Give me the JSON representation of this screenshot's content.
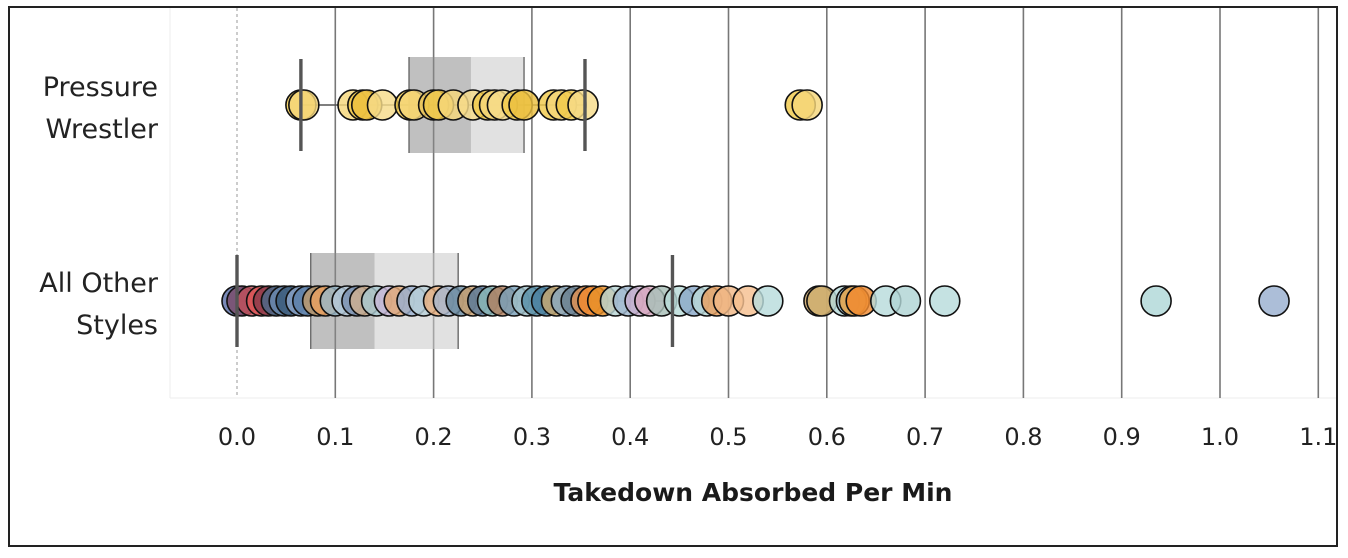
{
  "chart_data": {
    "type": "scatter",
    "subtype": "box-and-whisker strip plot",
    "orientation": "horizontal",
    "xlabel": "Takedown Absorbed Per Min",
    "xlim": [
      -0.07,
      1.12
    ],
    "xticks": [
      0.0,
      0.1,
      0.2,
      0.3,
      0.4,
      0.5,
      0.6,
      0.7,
      0.8,
      0.9,
      1.0,
      1.1
    ],
    "tick_labels": [
      "0.0",
      "0.1",
      "0.2",
      "0.3",
      "0.4",
      "0.5",
      "0.6",
      "0.7",
      "0.8",
      "0.9",
      "1.0",
      "1.1"
    ],
    "grid": "vertical lines at each x tick",
    "zero_line": "dashed",
    "categories": [
      "Pressure Wrestler",
      "All Other Styles"
    ],
    "category_labels": [
      [
        "Pressure",
        "Wrestler"
      ],
      [
        "All Other",
        "Styles"
      ]
    ],
    "boxes": [
      {
        "category": "Pressure Wrestler",
        "whisker_low": 0.065,
        "q1": 0.175,
        "median": 0.238,
        "q3": 0.292,
        "whisker_high": 0.354
      },
      {
        "category": "All Other Styles",
        "whisker_low": 0.0,
        "q1": 0.075,
        "median": 0.14,
        "q3": 0.225,
        "whisker_high": 0.443
      }
    ],
    "series": [
      {
        "category": "Pressure Wrestler",
        "points": [
          {
            "x": 0.065,
            "color": "#f0c94a"
          },
          {
            "x": 0.068,
            "color": "#f5d77a"
          },
          {
            "x": 0.118,
            "color": "#f5d77a"
          },
          {
            "x": 0.128,
            "color": "#f0c94a"
          },
          {
            "x": 0.132,
            "color": "#ecc040"
          },
          {
            "x": 0.148,
            "color": "#f7dc8a"
          },
          {
            "x": 0.176,
            "color": "#f0c94a"
          },
          {
            "x": 0.18,
            "color": "#f5d77a"
          },
          {
            "x": 0.2,
            "color": "#e8c35a"
          },
          {
            "x": 0.205,
            "color": "#f0c94a"
          },
          {
            "x": 0.22,
            "color": "#f5d77a"
          },
          {
            "x": 0.24,
            "color": "#f7dc8a"
          },
          {
            "x": 0.255,
            "color": "#f0c94a"
          },
          {
            "x": 0.262,
            "color": "#f5d77a"
          },
          {
            "x": 0.27,
            "color": "#f7dc8a"
          },
          {
            "x": 0.285,
            "color": "#f0c94a"
          },
          {
            "x": 0.292,
            "color": "#ecc040"
          },
          {
            "x": 0.322,
            "color": "#f0c94a"
          },
          {
            "x": 0.33,
            "color": "#f5d77a"
          },
          {
            "x": 0.34,
            "color": "#f0c94a"
          },
          {
            "x": 0.352,
            "color": "#f7dc8a"
          },
          {
            "x": 0.573,
            "color": "#f0c94a"
          },
          {
            "x": 0.58,
            "color": "#f5d77a"
          }
        ]
      },
      {
        "category": "All Other Styles",
        "points": [
          {
            "x": 0.0,
            "color": "#5b6fa8"
          },
          {
            "x": 0.005,
            "color": "#7a4a6a"
          },
          {
            "x": 0.015,
            "color": "#c0505a"
          },
          {
            "x": 0.025,
            "color": "#e05858"
          },
          {
            "x": 0.032,
            "color": "#8a3a4a"
          },
          {
            "x": 0.04,
            "color": "#4a6a8a"
          },
          {
            "x": 0.048,
            "color": "#6a8ab0"
          },
          {
            "x": 0.055,
            "color": "#3a5a7a"
          },
          {
            "x": 0.065,
            "color": "#8aa4c8"
          },
          {
            "x": 0.072,
            "color": "#5b7fa8"
          },
          {
            "x": 0.082,
            "color": "#c09a6a"
          },
          {
            "x": 0.09,
            "color": "#e8a060"
          },
          {
            "x": 0.1,
            "color": "#9ab8c8"
          },
          {
            "x": 0.112,
            "color": "#b5c8d8"
          },
          {
            "x": 0.122,
            "color": "#7a90b0"
          },
          {
            "x": 0.13,
            "color": "#d0b090"
          },
          {
            "x": 0.142,
            "color": "#a8c8d0"
          },
          {
            "x": 0.155,
            "color": "#c8b8d8"
          },
          {
            "x": 0.165,
            "color": "#e0a878"
          },
          {
            "x": 0.178,
            "color": "#9ab0d0"
          },
          {
            "x": 0.19,
            "color": "#b8d0d8"
          },
          {
            "x": 0.205,
            "color": "#e8b080"
          },
          {
            "x": 0.215,
            "color": "#a8b8d0"
          },
          {
            "x": 0.228,
            "color": "#6a8aa0"
          },
          {
            "x": 0.24,
            "color": "#c8a070"
          },
          {
            "x": 0.25,
            "color": "#5a7a9a"
          },
          {
            "x": 0.26,
            "color": "#8ab8b8"
          },
          {
            "x": 0.27,
            "color": "#b08060"
          },
          {
            "x": 0.282,
            "color": "#7aa0b8"
          },
          {
            "x": 0.295,
            "color": "#a0c0c8"
          },
          {
            "x": 0.305,
            "color": "#5a90a8"
          },
          {
            "x": 0.315,
            "color": "#4a80a0"
          },
          {
            "x": 0.325,
            "color": "#c8a870"
          },
          {
            "x": 0.335,
            "color": "#8aa8c0"
          },
          {
            "x": 0.345,
            "color": "#6a8090"
          },
          {
            "x": 0.355,
            "color": "#e09050"
          },
          {
            "x": 0.362,
            "color": "#f08a30"
          },
          {
            "x": 0.372,
            "color": "#e8902a"
          },
          {
            "x": 0.385,
            "color": "#b8d4d4"
          },
          {
            "x": 0.398,
            "color": "#a0b8d0"
          },
          {
            "x": 0.41,
            "color": "#c8b0d0"
          },
          {
            "x": 0.42,
            "color": "#d8a8c0"
          },
          {
            "x": 0.432,
            "color": "#a8c0b8"
          },
          {
            "x": 0.45,
            "color": "#b8dad8"
          },
          {
            "x": 0.465,
            "color": "#8aa8c8"
          },
          {
            "x": 0.478,
            "color": "#b8d8d8"
          },
          {
            "x": 0.488,
            "color": "#e8a060"
          },
          {
            "x": 0.5,
            "color": "#f0b888"
          },
          {
            "x": 0.52,
            "color": "#f5c090"
          },
          {
            "x": 0.54,
            "color": "#b8dcdc"
          },
          {
            "x": 0.592,
            "color": "#c8a060"
          },
          {
            "x": 0.595,
            "color": "#d0b070"
          },
          {
            "x": 0.618,
            "color": "#b8dcdc"
          },
          {
            "x": 0.625,
            "color": "#a8c8d8"
          },
          {
            "x": 0.628,
            "color": "#e8a040"
          },
          {
            "x": 0.635,
            "color": "#f08a30"
          },
          {
            "x": 0.66,
            "color": "#b8dcdc"
          },
          {
            "x": 0.68,
            "color": "#b0d4d4"
          },
          {
            "x": 0.72,
            "color": "#b8dcdc"
          },
          {
            "x": 0.935,
            "color": "#b0d8d8"
          },
          {
            "x": 1.055,
            "color": "#9ab0d0"
          }
        ]
      }
    ]
  }
}
